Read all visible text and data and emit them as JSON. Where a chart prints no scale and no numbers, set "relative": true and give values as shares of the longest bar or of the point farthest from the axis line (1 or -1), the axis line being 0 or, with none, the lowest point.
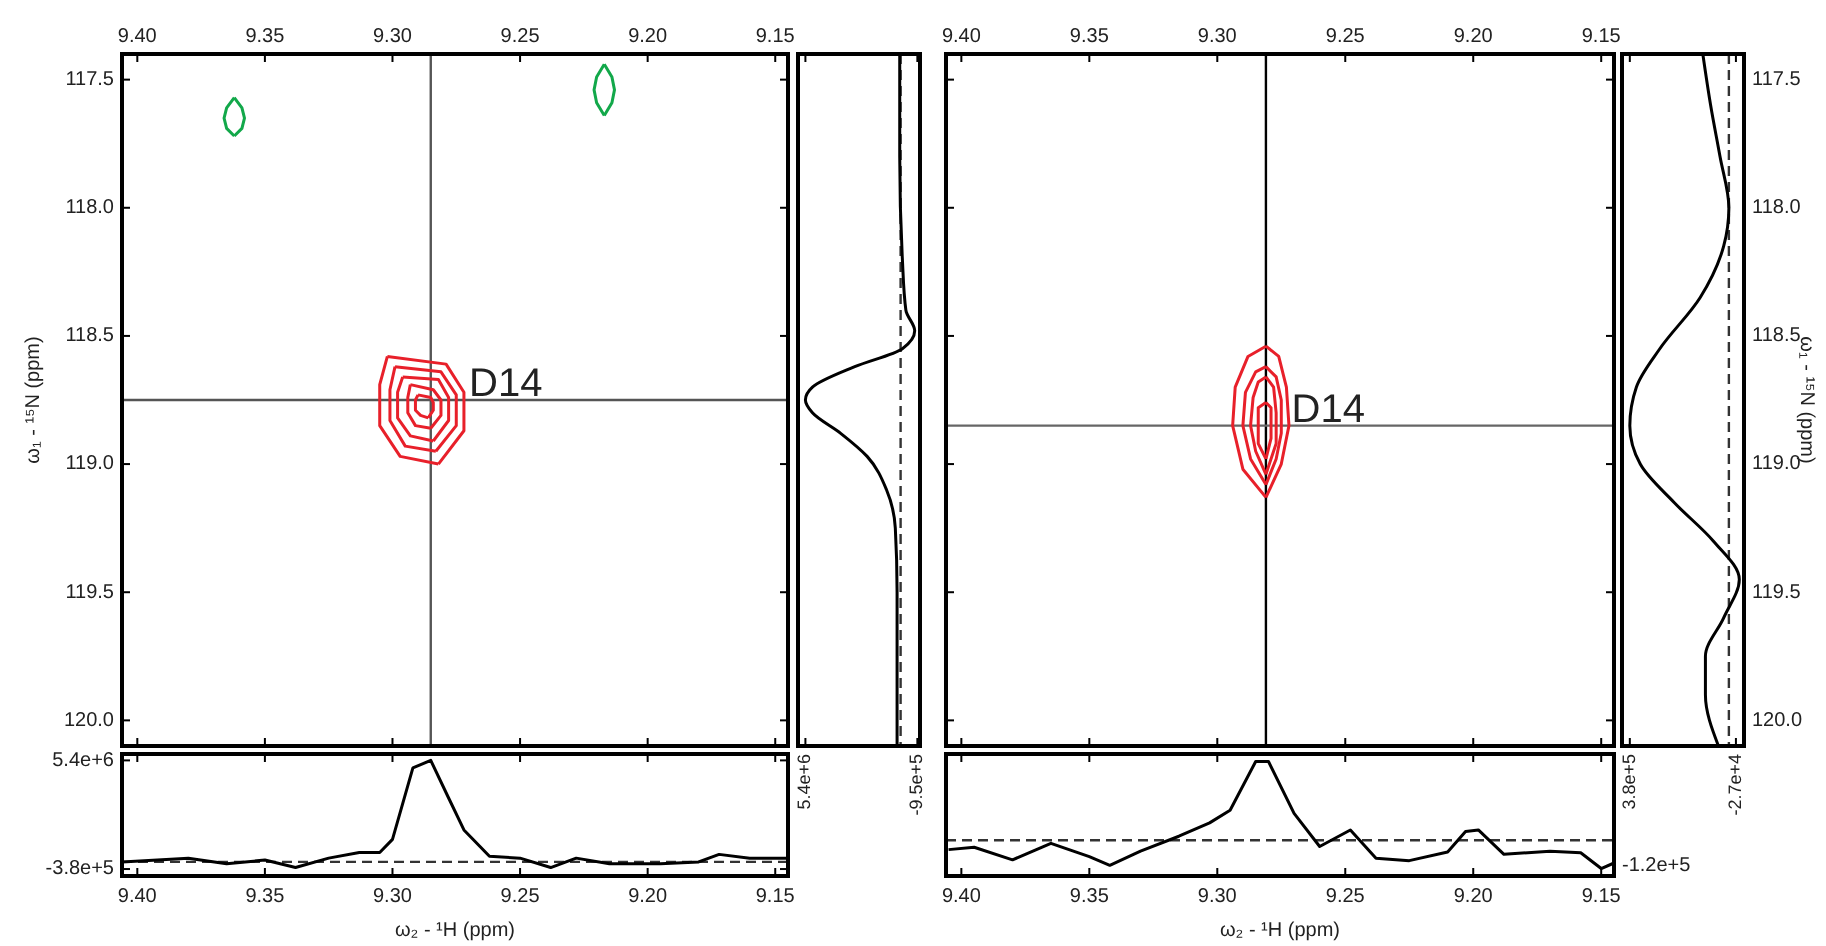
{
  "chart_data": [
    {
      "type": "line",
      "xlim": [
        9.406,
        9.145
      ],
      "ylim": [
        120.1,
        117.4
      ],
      "xticks": [
        {
          "value": 9.4,
          "label": "9.40"
        },
        {
          "value": 9.35,
          "label": "9.35"
        },
        {
          "value": 9.3,
          "label": "9.30"
        },
        {
          "value": 9.25,
          "label": "9.25"
        },
        {
          "value": 9.2,
          "label": "9.20"
        },
        {
          "value": 9.15,
          "label": "9.15"
        }
      ],
      "yticks": [
        117.5,
        {
          "value": 118,
          "label": "118.0"
        },
        118.5,
        {
          "value": 119,
          "label": "119.0"
        },
        119.5,
        {
          "value": 120,
          "label": "120.0"
        }
      ],
      "ylabel": "ω₁ - ¹⁵N  (ppm)",
      "ref_lines": [
        {
          "axis": "x",
          "value": 9.285,
          "color": "#555555"
        },
        {
          "axis": "y",
          "value": 118.75,
          "color": "#555555"
        }
      ],
      "annotations": [
        {
          "text": "D14",
          "x": 9.27,
          "y": 118.75
        }
      ],
      "series": [
        {
          "color": "#e8202a",
          "x": [
            9.302,
            9.279,
            9.272,
            9.272,
            9.282
          ],
          "values": [
            118.58,
            118.61,
            118.72,
            118.87,
            119.0
          ]
        },
        {
          "color": "#e8202a",
          "x": [
            9.302,
            9.305,
            9.305,
            9.297,
            9.282
          ],
          "values": [
            118.58,
            118.69,
            118.85,
            118.97,
            119.0
          ]
        },
        {
          "color": "#e8202a",
          "x": [
            9.299,
            9.281,
            9.275,
            9.275,
            9.283
          ],
          "values": [
            118.62,
            118.64,
            118.73,
            118.85,
            118.95
          ]
        },
        {
          "color": "#e8202a",
          "x": [
            9.299,
            9.301,
            9.301,
            9.295,
            9.283
          ],
          "values": [
            118.62,
            118.71,
            118.83,
            118.93,
            118.95
          ]
        },
        {
          "color": "#e8202a",
          "x": [
            9.296,
            9.282,
            9.278,
            9.278,
            9.284
          ],
          "values": [
            118.66,
            118.67,
            118.74,
            118.83,
            118.91
          ]
        },
        {
          "color": "#e8202a",
          "x": [
            9.296,
            9.298,
            9.298,
            9.293,
            9.284
          ],
          "values": [
            118.66,
            118.72,
            118.82,
            118.89,
            118.91
          ]
        },
        {
          "color": "#e8202a",
          "x": [
            9.293,
            9.284,
            9.281,
            9.281,
            9.285
          ],
          "values": [
            118.69,
            118.71,
            118.75,
            118.81,
            118.86
          ]
        },
        {
          "color": "#e8202a",
          "x": [
            9.293,
            9.294,
            9.294,
            9.291,
            9.285
          ],
          "values": [
            118.69,
            118.74,
            118.8,
            118.85,
            118.86
          ]
        },
        {
          "color": "#e8202a",
          "x": [
            9.29,
            9.285,
            9.284,
            9.284,
            9.286
          ],
          "values": [
            118.73,
            118.74,
            118.76,
            118.79,
            118.82
          ]
        },
        {
          "color": "#e8202a",
          "x": [
            9.29,
            9.291,
            9.291,
            9.289,
            9.286
          ],
          "values": [
            118.73,
            118.75,
            118.79,
            118.81,
            118.82
          ]
        },
        {
          "color": "#12a84a",
          "x": [
            9.362,
            9.359,
            9.358,
            9.359,
            9.362
          ],
          "values": [
            117.57,
            117.61,
            117.65,
            117.69,
            117.72
          ]
        },
        {
          "color": "#12a84a",
          "x": [
            9.362,
            9.365,
            9.366,
            9.365,
            9.362
          ],
          "values": [
            117.57,
            117.61,
            117.65,
            117.69,
            117.72
          ]
        },
        {
          "color": "#12a84a",
          "x": [
            9.217,
            9.214,
            9.213,
            9.214,
            9.217
          ],
          "values": [
            117.44,
            117.49,
            117.54,
            117.59,
            117.64
          ]
        },
        {
          "color": "#12a84a",
          "x": [
            9.217,
            9.22,
            9.221,
            9.22,
            9.217
          ],
          "values": [
            117.44,
            117.49,
            117.54,
            117.59,
            117.64
          ]
        }
      ]
    },
    {
      "type": "line",
      "xlim": [
        5820000,
        -1100000
      ],
      "ylim": [
        120.1,
        117.4
      ],
      "xticks": [
        {
          "value": 5400000,
          "label": "5.4e+6"
        },
        {
          "value": -950000,
          "label": "-9.5e+5"
        }
      ],
      "tick_labels": "x",
      "ref_lines": [
        {
          "axis": "x",
          "value": 0,
          "color": "#333333",
          "line_style": "dashed"
        }
      ],
      "series": [
        {
          "color": "#000000",
          "x": [
            50000,
            50000,
            -100000,
            -300000,
            -800000,
            -100000,
            2600000,
            5000000,
            5400000,
            5000000,
            3400000,
            1900000,
            800000,
            300000,
            200000,
            200000
          ],
          "values": [
            117.4,
            117.8,
            118.2,
            118.4,
            118.48,
            118.55,
            118.62,
            118.7,
            118.75,
            118.8,
            118.88,
            118.97,
            119.1,
            119.25,
            119.5,
            120.1
          ]
        }
      ]
    },
    {
      "type": "line",
      "xlim": [
        9.406,
        9.145
      ],
      "ylim": [
        -750000,
        5740000
      ],
      "xticks": [
        {
          "value": 9.4,
          "label": "9.40"
        },
        {
          "value": 9.35,
          "label": "9.35"
        },
        {
          "value": 9.3,
          "label": "9.30"
        },
        {
          "value": 9.25,
          "label": "9.25"
        },
        {
          "value": 9.2,
          "label": "9.20"
        },
        {
          "value": 9.15,
          "label": "9.15"
        }
      ],
      "yticks": [
        {
          "value": 5400000,
          "label": "5.4e+6"
        },
        {
          "value": -380000,
          "label": "-3.8e+5"
        }
      ],
      "xlabel": "ω₂ - ¹H  (ppm)",
      "ref_lines": [
        {
          "axis": "y",
          "value": 0,
          "color": "#333333",
          "line_style": "dashed"
        }
      ],
      "series": [
        {
          "color": "#000000",
          "x": [
            9.406,
            9.38,
            9.365,
            9.35,
            9.338,
            9.325,
            9.313,
            9.305,
            9.3,
            9.292,
            9.285,
            9.278,
            9.272,
            9.262,
            9.25,
            9.238,
            9.228,
            9.215,
            9.195,
            9.18,
            9.172,
            9.16,
            9.145
          ],
          "values": [
            0,
            200000,
            -100000,
            100000,
            -300000,
            200000,
            500000,
            500000,
            1200000,
            5000000,
            5400000,
            3400000,
            1700000,
            300000,
            200000,
            -300000,
            200000,
            -100000,
            -100000,
            0,
            400000,
            200000,
            200000
          ]
        }
      ]
    },
    {
      "type": "line",
      "xlim": [
        9.406,
        9.145
      ],
      "ylim": [
        120.1,
        117.4
      ],
      "xticks": [
        {
          "value": 9.4,
          "label": "9.40"
        },
        {
          "value": 9.35,
          "label": "9.35"
        },
        {
          "value": 9.3,
          "label": "9.30"
        },
        {
          "value": 9.25,
          "label": "9.25"
        },
        {
          "value": 9.2,
          "label": "9.20"
        },
        {
          "value": 9.15,
          "label": "9.15"
        }
      ],
      "yticks": [
        117.5,
        {
          "value": 118,
          "label": "118.0"
        },
        118.5,
        {
          "value": 119,
          "label": "119.0"
        },
        119.5,
        {
          "value": 120,
          "label": "120.0"
        }
      ],
      "ylabel": "ω₁ - ¹⁵N  (ppm)",
      "ref_lines": [
        {
          "axis": "x",
          "value": 9.281,
          "color": "#000000"
        },
        {
          "axis": "y",
          "value": 118.85,
          "color": "#666666"
        }
      ],
      "annotations": [
        {
          "text": "D14",
          "x": 9.271,
          "y": 118.85
        }
      ],
      "series": [
        {
          "color": "#e8202a",
          "x": [
            9.281,
            9.276,
            9.273,
            9.272,
            9.275,
            9.281
          ],
          "values": [
            118.54,
            118.58,
            118.7,
            118.85,
            119.0,
            119.13
          ]
        },
        {
          "color": "#e8202a",
          "x": [
            9.281,
            9.288,
            9.293,
            9.294,
            9.29,
            9.281
          ],
          "values": [
            118.54,
            118.58,
            118.7,
            118.85,
            119.02,
            119.13
          ]
        },
        {
          "color": "#e8202a",
          "x": [
            9.281,
            9.277,
            9.275,
            9.275,
            9.277,
            9.281
          ],
          "values": [
            118.62,
            118.66,
            118.75,
            118.88,
            118.98,
            119.08
          ]
        },
        {
          "color": "#e8202a",
          "x": [
            9.281,
            9.285,
            9.289,
            9.29,
            9.287,
            9.281
          ],
          "values": [
            118.62,
            118.64,
            118.72,
            118.85,
            118.98,
            119.08
          ]
        },
        {
          "color": "#e8202a",
          "x": [
            9.281,
            9.278,
            9.277,
            9.277,
            9.281
          ],
          "values": [
            118.66,
            118.7,
            118.8,
            118.92,
            119.04
          ]
        },
        {
          "color": "#e8202a",
          "x": [
            9.281,
            9.284,
            9.286,
            9.287,
            9.285,
            9.281
          ],
          "values": [
            118.66,
            118.68,
            118.74,
            118.85,
            118.95,
            119.04
          ]
        },
        {
          "color": "#e8202a",
          "x": [
            9.281,
            9.279,
            9.279,
            9.281
          ],
          "values": [
            118.76,
            118.78,
            118.9,
            118.98
          ]
        },
        {
          "color": "#e8202a",
          "x": [
            9.281,
            9.284,
            9.284,
            9.281
          ],
          "values": [
            118.76,
            118.78,
            118.92,
            118.98
          ]
        }
      ]
    },
    {
      "type": "line",
      "xlim": [
        410000,
        -58000
      ],
      "ylim": [
        120.1,
        117.4
      ],
      "xticks": [
        {
          "value": 380000,
          "label": "3.8e+5"
        },
        {
          "value": -27000,
          "label": "-2.7e+4"
        }
      ],
      "tick_labels": "x",
      "ref_lines": [
        {
          "axis": "x",
          "value": 0,
          "color": "#333333",
          "line_style": "dashed"
        }
      ],
      "series": [
        {
          "color": "#000000",
          "x": [
            100000,
            70000,
            34000,
            0,
            20000,
            110000,
            265000,
            355000,
            380000,
            340000,
            210000,
            60000,
            -40000,
            20000,
            90000,
            90000,
            40000
          ],
          "values": [
            117.4,
            117.6,
            117.8,
            118.0,
            118.15,
            118.35,
            118.55,
            118.7,
            118.85,
            119.0,
            119.15,
            119.3,
            119.45,
            119.6,
            119.75,
            119.9,
            120.1
          ]
        }
      ]
    },
    {
      "type": "line",
      "relative": true,
      "xlim": [
        9.406,
        9.145
      ],
      "xticks": [
        {
          "value": 9.4,
          "label": "9.40"
        },
        {
          "value": 9.35,
          "label": "9.35"
        },
        {
          "value": 9.3,
          "label": "9.30"
        },
        {
          "value": 9.25,
          "label": "9.25"
        },
        {
          "value": 9.2,
          "label": "9.20"
        },
        {
          "value": 9.15,
          "label": "9.15"
        }
      ],
      "xlabel": "ω₂ - ¹H  (ppm)",
      "annotations": [
        "-1.2e+5"
      ],
      "ref_lines": [
        {
          "axis": "y",
          "value": 0,
          "color": "#333333",
          "line_style": "dashed"
        }
      ],
      "series": [
        {
          "color": "#000000",
          "x": [
            9.405,
            9.395,
            9.38,
            9.365,
            9.35,
            9.342,
            9.33,
            9.315,
            9.303,
            9.295,
            9.285,
            9.28,
            9.27,
            9.26,
            9.248,
            9.238,
            9.225,
            9.21,
            9.203,
            9.198,
            9.188,
            9.17,
            9.158,
            9.15,
            9.145
          ],
          "values": [
            -0.12,
            -0.09,
            -0.25,
            -0.04,
            -0.21,
            -0.32,
            -0.14,
            0.05,
            0.22,
            0.38,
            1,
            1,
            0.34,
            -0.08,
            0.13,
            -0.23,
            -0.26,
            -0.15,
            0.11,
            0.13,
            -0.18,
            -0.14,
            -0.16,
            -0.36,
            -0.29
          ]
        }
      ]
    }
  ]
}
